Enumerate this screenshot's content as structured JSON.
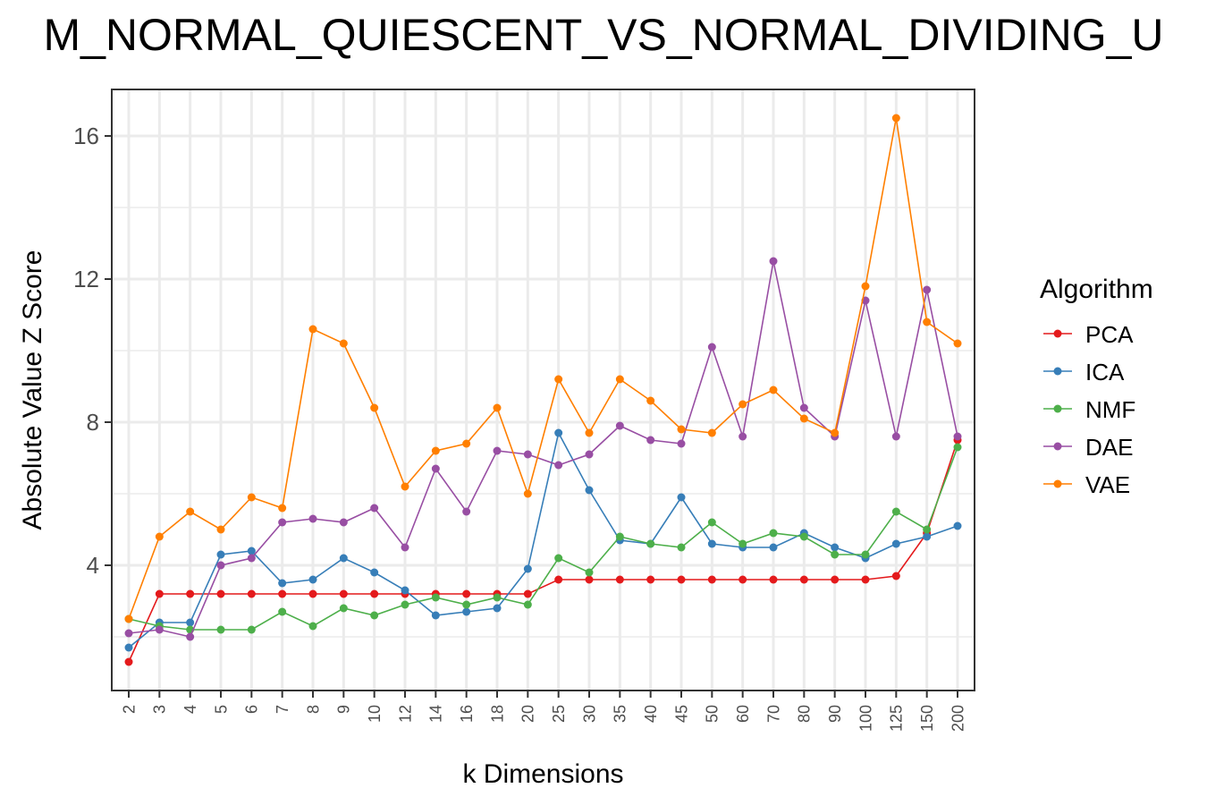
{
  "chart_data": {
    "type": "line",
    "title": "M_NORMAL_QUIESCENT_VS_NORMAL_DIVIDING_U",
    "xlabel": "k Dimensions",
    "ylabel": "Absolute Value Z Score",
    "categories": [
      "2",
      "3",
      "4",
      "5",
      "6",
      "7",
      "8",
      "9",
      "10",
      "12",
      "14",
      "16",
      "18",
      "20",
      "25",
      "30",
      "35",
      "40",
      "45",
      "50",
      "60",
      "70",
      "80",
      "90",
      "100",
      "125",
      "150",
      "200"
    ],
    "ylim": [
      0.5,
      17.3
    ],
    "yticks": [
      4,
      8,
      12,
      16
    ],
    "grid": true,
    "legend": {
      "title": "Algorithm",
      "position": "right"
    },
    "series": [
      {
        "name": "PCA",
        "color": "#e41a1c",
        "values": [
          1.3,
          3.2,
          3.2,
          3.2,
          3.2,
          3.2,
          3.2,
          3.2,
          3.2,
          3.2,
          3.2,
          3.2,
          3.2,
          3.2,
          3.6,
          3.6,
          3.6,
          3.6,
          3.6,
          3.6,
          3.6,
          3.6,
          3.6,
          3.6,
          3.6,
          3.7,
          4.9,
          7.5
        ]
      },
      {
        "name": "ICA",
        "color": "#377eb8",
        "values": [
          1.7,
          2.4,
          2.4,
          4.3,
          4.4,
          3.5,
          3.6,
          4.2,
          3.8,
          3.3,
          2.6,
          2.7,
          2.8,
          3.9,
          7.7,
          6.1,
          4.7,
          4.6,
          5.9,
          4.6,
          4.5,
          4.5,
          4.9,
          4.5,
          4.2,
          4.6,
          4.8,
          5.1
        ]
      },
      {
        "name": "NMF",
        "color": "#4daf4a",
        "values": [
          2.5,
          2.3,
          2.2,
          2.2,
          2.2,
          2.7,
          2.3,
          2.8,
          2.6,
          2.9,
          3.1,
          2.9,
          3.1,
          2.9,
          4.2,
          3.8,
          4.8,
          4.6,
          4.5,
          5.2,
          4.6,
          4.9,
          4.8,
          4.3,
          4.3,
          5.5,
          5.0,
          7.3
        ]
      },
      {
        "name": "DAE",
        "color": "#984ea3",
        "values": [
          2.1,
          2.2,
          2.0,
          4.0,
          4.2,
          5.2,
          5.3,
          5.2,
          5.6,
          4.5,
          6.7,
          5.5,
          7.2,
          7.1,
          6.8,
          7.1,
          7.9,
          7.5,
          7.4,
          10.1,
          7.6,
          12.5,
          8.4,
          7.6,
          11.4,
          7.6,
          11.7,
          7.6
        ]
      },
      {
        "name": "VAE",
        "color": "#ff7f00",
        "values": [
          2.5,
          4.8,
          5.5,
          5.0,
          5.9,
          5.6,
          10.6,
          10.2,
          8.4,
          6.2,
          7.2,
          7.4,
          8.4,
          6.0,
          9.2,
          7.7,
          9.2,
          8.6,
          7.8,
          7.7,
          8.5,
          8.9,
          8.1,
          7.7,
          11.8,
          16.5,
          10.8,
          10.2
        ]
      }
    ]
  }
}
